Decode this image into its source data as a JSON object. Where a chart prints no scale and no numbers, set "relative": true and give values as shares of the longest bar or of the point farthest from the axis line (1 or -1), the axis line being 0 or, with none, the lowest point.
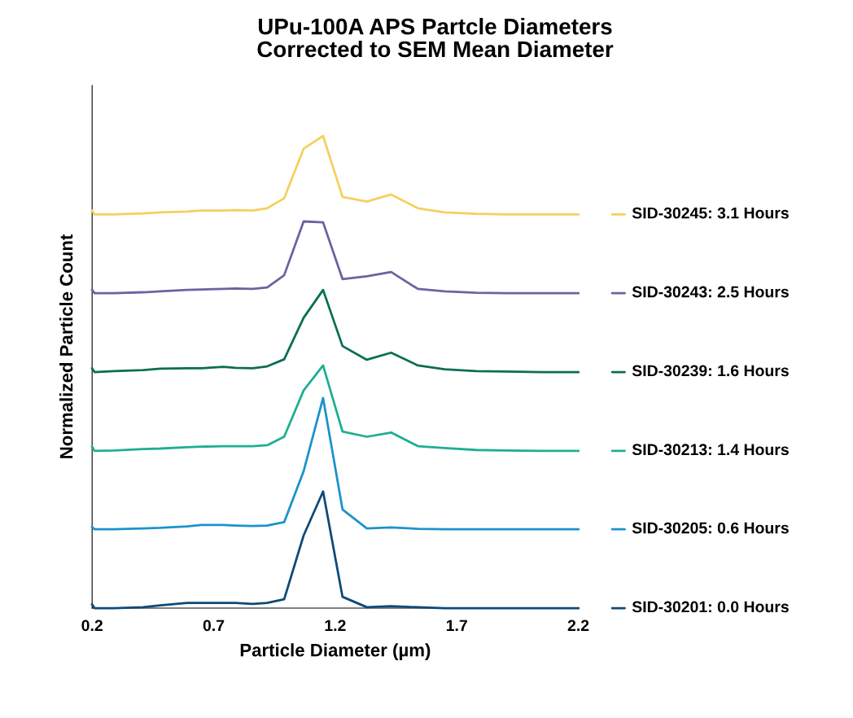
{
  "chart_data": {
    "type": "line",
    "title": "UPu-100A APS Partcle Diameters\nCorrected to SEM Mean Diameter",
    "xlabel": "Particle Diameter (µm)",
    "ylabel": "Normalized Particle Count",
    "relative": true,
    "legend": "right",
    "grid": false,
    "marker": "none",
    "line_style": "solid",
    "x": [
      0.2,
      0.21,
      0.29,
      0.41,
      0.48,
      0.59,
      0.65,
      0.74,
      0.79,
      0.86,
      0.92,
      0.99,
      1.07,
      1.15,
      1.23,
      1.33,
      1.43,
      1.54,
      1.65,
      1.78,
      1.9,
      2.05,
      2.2
    ],
    "xlim": [
      0.2,
      2.2
    ],
    "xticks": [
      0.2,
      0.7,
      1.2,
      1.7,
      2.2
    ],
    "series": [
      {
        "name": "SID-30245: 3.1 Hours",
        "color": "#f5d060",
        "values": [
          0.842,
          0.834,
          0.834,
          0.836,
          0.838,
          0.84,
          0.842,
          0.842,
          0.843,
          0.842,
          0.847,
          0.868,
          0.973,
          1.0,
          0.871,
          0.861,
          0.876,
          0.847,
          0.838,
          0.835,
          0.834,
          0.834,
          0.834
        ]
      },
      {
        "name": "SID-30243: 2.5 Hours",
        "color": "#6b63a0",
        "values": [
          0.674,
          0.667,
          0.667,
          0.669,
          0.671,
          0.674,
          0.675,
          0.676,
          0.677,
          0.676,
          0.679,
          0.705,
          0.819,
          0.817,
          0.697,
          0.703,
          0.712,
          0.676,
          0.671,
          0.668,
          0.667,
          0.667,
          0.667
        ]
      },
      {
        "name": "SID-30239: 1.6 Hours",
        "color": "#0b6e55",
        "values": [
          0.508,
          0.5,
          0.502,
          0.504,
          0.507,
          0.508,
          0.508,
          0.511,
          0.509,
          0.508,
          0.512,
          0.527,
          0.615,
          0.674,
          0.555,
          0.526,
          0.541,
          0.514,
          0.506,
          0.502,
          0.501,
          0.5,
          0.5
        ]
      },
      {
        "name": "SID-30213: 1.4 Hours",
        "color": "#1fae93",
        "values": [
          0.342,
          0.333,
          0.334,
          0.337,
          0.338,
          0.341,
          0.342,
          0.343,
          0.343,
          0.343,
          0.345,
          0.363,
          0.461,
          0.514,
          0.374,
          0.363,
          0.372,
          0.343,
          0.339,
          0.335,
          0.334,
          0.333,
          0.333
        ]
      },
      {
        "name": "SID-30205: 0.6 Hours",
        "color": "#1a93cc",
        "values": [
          0.172,
          0.167,
          0.167,
          0.169,
          0.17,
          0.173,
          0.176,
          0.176,
          0.175,
          0.174,
          0.175,
          0.182,
          0.29,
          0.445,
          0.209,
          0.169,
          0.171,
          0.168,
          0.167,
          0.167,
          0.167,
          0.167,
          0.167
        ]
      },
      {
        "name": "SID-30201: 0.0 Hours",
        "color": "#0e4a78",
        "values": [
          0.008,
          0.0,
          0.0,
          0.002,
          0.006,
          0.011,
          0.011,
          0.011,
          0.011,
          0.009,
          0.011,
          0.019,
          0.154,
          0.247,
          0.024,
          0.002,
          0.004,
          0.002,
          0.0,
          0.0,
          0.0,
          0.0,
          0.0
        ]
      }
    ]
  }
}
